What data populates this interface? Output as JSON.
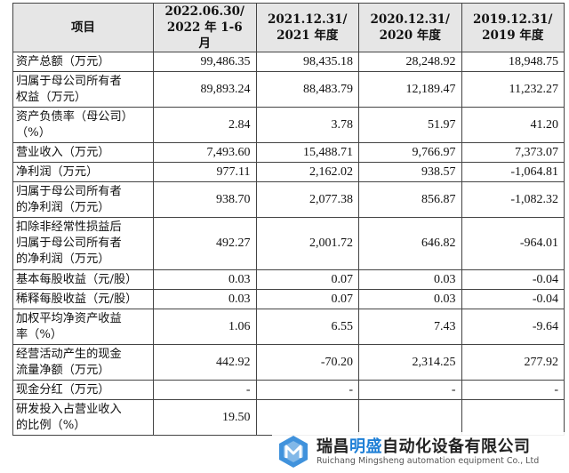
{
  "table": {
    "headers": [
      {
        "line1": "项目",
        "line2": ""
      },
      {
        "line1": "2022.06.30/",
        "line2": "2022 年 1-6 月"
      },
      {
        "line1": "2021.12.31/",
        "line2": "2021 年度"
      },
      {
        "line1": "2020.12.31/",
        "line2": "2020 年度"
      },
      {
        "line1": "2019.12.31/",
        "line2": "2019 年度"
      }
    ],
    "rows": [
      {
        "label_lines": [
          "资产总额（万元）"
        ],
        "values": [
          "99,486.35",
          "98,435.18",
          "28,248.92",
          "18,948.75"
        ]
      },
      {
        "label_lines": [
          "归属于母公司所有者",
          "权益（万元）"
        ],
        "values": [
          "89,893.24",
          "88,483.79",
          "12,189.47",
          "11,232.27"
        ]
      },
      {
        "label_lines": [
          "资产负债率（母公司）",
          "（%）"
        ],
        "values": [
          "2.84",
          "3.78",
          "51.97",
          "41.20"
        ]
      },
      {
        "label_lines": [
          "营业收入（万元）"
        ],
        "values": [
          "7,493.60",
          "15,488.71",
          "9,766.97",
          "7,373.07"
        ]
      },
      {
        "label_lines": [
          "净利润（万元）"
        ],
        "values": [
          "977.11",
          "2,162.02",
          "938.57",
          "-1,064.81"
        ]
      },
      {
        "label_lines": [
          "归属于母公司所有者",
          "的净利润（万元）"
        ],
        "values": [
          "938.70",
          "2,077.38",
          "856.87",
          "-1,082.32"
        ]
      },
      {
        "label_lines": [
          "扣除非经常性损益后",
          "归属于母公司所有者",
          "的净利润（万元）"
        ],
        "values": [
          "492.27",
          "2,001.72",
          "646.82",
          "-964.01"
        ]
      },
      {
        "label_lines": [
          "基本每股收益（元/股）"
        ],
        "values": [
          "0.03",
          "0.07",
          "0.03",
          "-0.04"
        ]
      },
      {
        "label_lines": [
          "稀释每股收益（元/股）"
        ],
        "values": [
          "0.03",
          "0.07",
          "0.03",
          "-0.04"
        ]
      },
      {
        "label_lines": [
          "加权平均净资产收益",
          "率（%）"
        ],
        "values": [
          "1.06",
          "6.55",
          "7.43",
          "-9.64"
        ]
      },
      {
        "label_lines": [
          "经营活动产生的现金",
          "流量净额（万元）"
        ],
        "values": [
          "442.92",
          "-70.20",
          "2,314.25",
          "277.92"
        ]
      },
      {
        "label_lines": [
          "现金分红（万元）"
        ],
        "values": [
          "-",
          "-",
          "-",
          "-"
        ]
      },
      {
        "label_lines": [
          "研发投入占营业收入",
          "的比例（%）"
        ],
        "values": [
          "19.50",
          "",
          "",
          ""
        ]
      }
    ]
  },
  "watermark": {
    "title_prefix": "瑞昌",
    "title_highlight": "明盛",
    "title_suffix": "自动化设备有限公司",
    "subtitle": "Ruichang Mingsheng automation equipment Co., Ltd",
    "logo_icon": "hexagon-logo-icon",
    "accent_color": "#1e7fd6"
  }
}
